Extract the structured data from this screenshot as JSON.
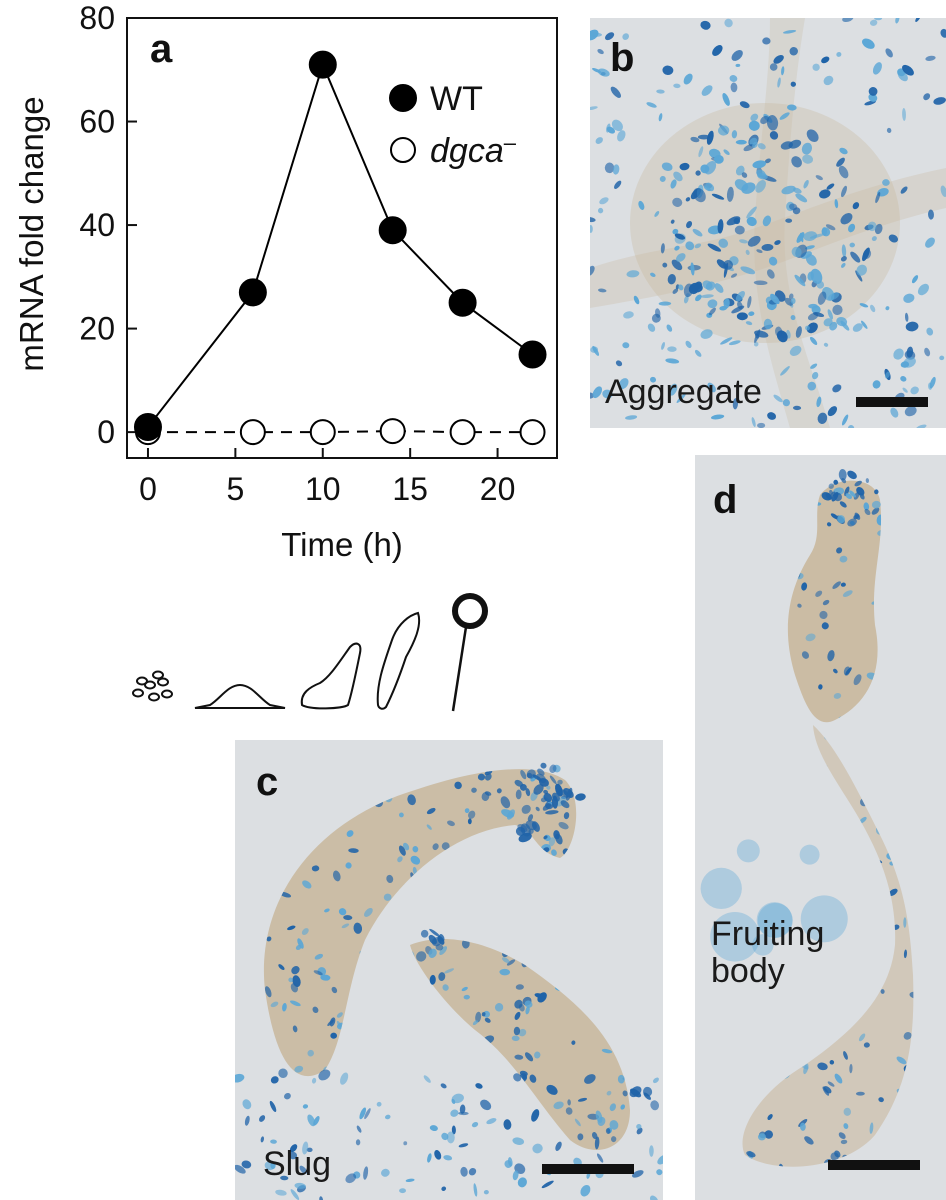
{
  "panels": {
    "a": {
      "letter": "a"
    },
    "b": {
      "letter": "b",
      "label": "Aggregate"
    },
    "c": {
      "letter": "c",
      "label": "Slug"
    },
    "d": {
      "letter": "d",
      "label_line1": "Fruiting",
      "label_line2": "body"
    }
  },
  "chart_data": {
    "type": "line",
    "ylabel": "mRNA fold change",
    "xlabel": "Time (h)",
    "xlim": [
      -1.2,
      23.4
    ],
    "ylim": [
      -5,
      80
    ],
    "xticks": [
      0,
      5,
      10,
      15,
      20
    ],
    "yticks": [
      0,
      20,
      40,
      60,
      80
    ],
    "grid": false,
    "legend_placement": "top-right",
    "series": [
      {
        "name": "WT",
        "marker": "filled-circle",
        "line": "solid",
        "color": "#000000",
        "x": [
          0,
          6,
          10,
          14,
          18,
          22
        ],
        "y": [
          1,
          27,
          71,
          39,
          25,
          15
        ]
      },
      {
        "name": "dgca",
        "name_superscript": "–",
        "marker": "open-circle",
        "line": "dashed",
        "color": "#000000",
        "x": [
          0,
          6,
          10,
          14,
          18,
          22
        ],
        "y": [
          0,
          0,
          0,
          0.2,
          0,
          0
        ]
      }
    ]
  },
  "colors": {
    "stain_blue": "#1f63a8",
    "stain_light_blue": "#5aa6d6",
    "tissue_beige": "#c9b9a0",
    "background_gray": "#dcdfe2"
  }
}
